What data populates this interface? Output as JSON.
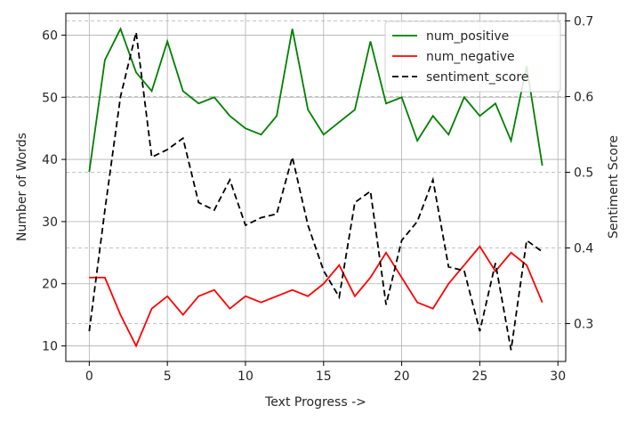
{
  "chart_data": {
    "type": "line",
    "x": [
      0,
      1,
      2,
      3,
      4,
      5,
      6,
      7,
      8,
      9,
      10,
      11,
      12,
      13,
      14,
      15,
      16,
      17,
      18,
      19,
      20,
      21,
      22,
      23,
      24,
      25,
      26,
      27,
      28,
      29
    ],
    "xlabel": "Text Progress ->",
    "ylabel_left": "Number of Words",
    "ylabel_right": "Sentiment Score",
    "xlim": [
      -1.5,
      30.5
    ],
    "ylim_left": [
      7.5,
      63.5
    ],
    "ylim_right": [
      0.25,
      0.71
    ],
    "xticks": [
      0,
      5,
      10,
      15,
      20,
      25,
      30
    ],
    "yticks_left": [
      10,
      20,
      30,
      40,
      50,
      60
    ],
    "yticks_right": [
      0.3,
      0.4,
      0.5,
      0.6,
      0.7
    ],
    "series": [
      {
        "name": "num_positive",
        "axis": "left",
        "color": "#008000",
        "style": "solid",
        "values": [
          38,
          56,
          61,
          54,
          51,
          59,
          51,
          49,
          50,
          47,
          45,
          44,
          47,
          61,
          48,
          44,
          46,
          48,
          59,
          49,
          50,
          43,
          47,
          44,
          50,
          47,
          49,
          43,
          55,
          39
        ]
      },
      {
        "name": "num_negative",
        "axis": "left",
        "color": "#ff0000",
        "style": "solid",
        "values": [
          21,
          21,
          15,
          10,
          16,
          18,
          15,
          18,
          19,
          16,
          18,
          17,
          18,
          19,
          18,
          20,
          23,
          18,
          21,
          25,
          21,
          17,
          16,
          20,
          23,
          26,
          22,
          25,
          23,
          17
        ]
      },
      {
        "name": "sentiment_score",
        "axis": "right",
        "color": "#000000",
        "style": "dashed",
        "values": [
          0.29,
          0.45,
          0.6,
          0.685,
          0.52,
          0.53,
          0.545,
          0.46,
          0.45,
          0.49,
          0.43,
          0.44,
          0.445,
          0.52,
          0.43,
          0.37,
          0.335,
          0.46,
          0.475,
          0.325,
          0.41,
          0.435,
          0.49,
          0.375,
          0.37,
          0.29,
          0.38,
          0.265,
          0.41,
          0.395
        ]
      }
    ],
    "legend_position": "upper right"
  }
}
